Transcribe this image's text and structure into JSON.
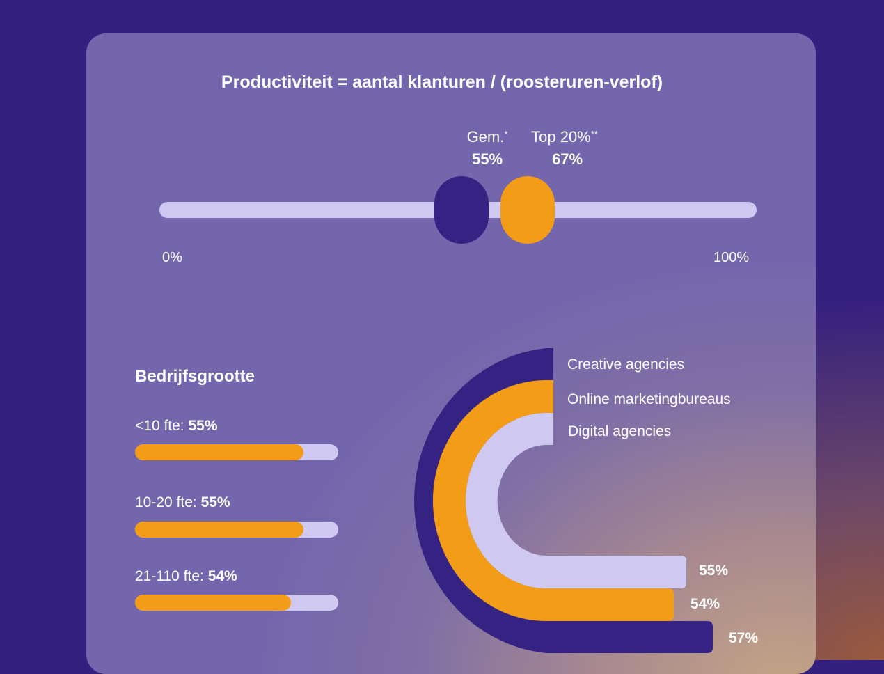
{
  "title": "Productiviteit = aantal klanturen / (roosteruren-verlof)",
  "gauge": {
    "min_label": "0%",
    "max_label": "100%",
    "markers": [
      {
        "label": "Gem.",
        "sup": "*",
        "value_label": "55%",
        "value": 55,
        "color": "#352383"
      },
      {
        "label": "Top 20%",
        "sup": "**",
        "value_label": "67%",
        "value": 67,
        "color": "#f29c18"
      }
    ]
  },
  "bedrijfsgrootte": {
    "title": "Bedrijfsgrootte",
    "items": [
      {
        "label": "<10 fte:",
        "value_label": "55%",
        "value": 55
      },
      {
        "label": "10-20 fte:",
        "value_label": "55%",
        "value": 55
      },
      {
        "label": "21-110 fte:",
        "value_label": "54%",
        "value": 54
      }
    ]
  },
  "chart_data": {
    "type": "bar",
    "variant": "radial",
    "categories": [
      "Creative agencies",
      "Online marketingbureaus",
      "Digital agencies"
    ],
    "values": [
      57,
      54,
      55
    ],
    "value_labels": [
      "57%",
      "54%",
      "55%"
    ],
    "colors": [
      "#352383",
      "#f29c18",
      "#cfc9f2"
    ]
  },
  "colors": {
    "background": "#34207f",
    "card": "#7366ad",
    "navy": "#352383",
    "orange": "#f29c18",
    "lavender": "#cfc9f2"
  }
}
